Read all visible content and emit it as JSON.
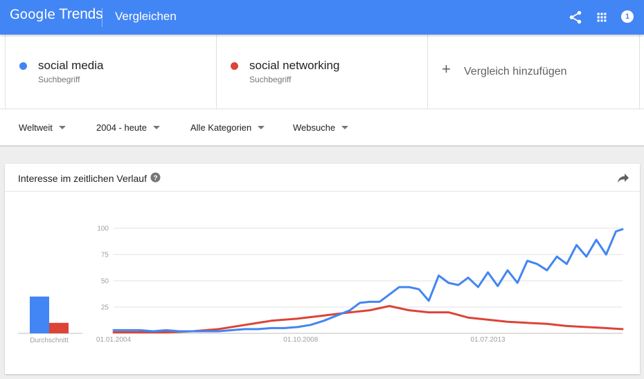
{
  "header": {
    "logo_google": "Google",
    "logo_trends": "Trends",
    "title": "Vergleichen",
    "icons": [
      "share-icon",
      "apps-icon"
    ],
    "notifications": "1"
  },
  "terms": [
    {
      "name": "social media",
      "type": "Suchbegriff",
      "color": "#4285f4"
    },
    {
      "name": "social networking",
      "type": "Suchbegriff",
      "color": "#db4437"
    }
  ],
  "add_term": {
    "label": "Vergleich hinzufügen"
  },
  "filters": {
    "region": "Weltweit",
    "time": "2004 - heute",
    "category": "Alle Kategorien",
    "search_type": "Websuche"
  },
  "card": {
    "title": "Interesse im zeitlichen Verlauf"
  },
  "chart_data": {
    "type": "line",
    "ylim": [
      0,
      100
    ],
    "y_ticks": [
      "100",
      "75",
      "50",
      "25"
    ],
    "x_tick_labels": [
      "01.01.2004",
      "01.10.2008",
      "01.07.2013"
    ],
    "x_tick_dates": [
      "2004-01",
      "2008-10",
      "2013-07"
    ],
    "x_range": [
      "2004-01",
      "2016-12"
    ],
    "average_label": "Durchschnitt",
    "averages": [
      {
        "name": "social media",
        "value": 35
      },
      {
        "name": "social networking",
        "value": 10
      }
    ],
    "series": [
      {
        "name": "social media",
        "color": "#4285f4",
        "points": [
          [
            "2004-01",
            3
          ],
          [
            "2004-05",
            3
          ],
          [
            "2004-09",
            3
          ],
          [
            "2005-01",
            2
          ],
          [
            "2005-05",
            3
          ],
          [
            "2005-09",
            2
          ],
          [
            "2006-01",
            2
          ],
          [
            "2006-05",
            2
          ],
          [
            "2006-09",
            2
          ],
          [
            "2007-01",
            3
          ],
          [
            "2007-05",
            4
          ],
          [
            "2007-09",
            4
          ],
          [
            "2008-01",
            5
          ],
          [
            "2008-05",
            5
          ],
          [
            "2008-09",
            6
          ],
          [
            "2009-01",
            8
          ],
          [
            "2009-05",
            12
          ],
          [
            "2009-09",
            17
          ],
          [
            "2010-01",
            22
          ],
          [
            "2010-04",
            29
          ],
          [
            "2010-07",
            30
          ],
          [
            "2010-10",
            30
          ],
          [
            "2011-01",
            37
          ],
          [
            "2011-04",
            44
          ],
          [
            "2011-07",
            44
          ],
          [
            "2011-10",
            42
          ],
          [
            "2012-01",
            31
          ],
          [
            "2012-04",
            55
          ],
          [
            "2012-07",
            48
          ],
          [
            "2012-10",
            46
          ],
          [
            "2013-01",
            53
          ],
          [
            "2013-04",
            44
          ],
          [
            "2013-07",
            58
          ],
          [
            "2013-10",
            45
          ],
          [
            "2014-01",
            60
          ],
          [
            "2014-04",
            48
          ],
          [
            "2014-07",
            69
          ],
          [
            "2014-10",
            66
          ],
          [
            "2015-01",
            60
          ],
          [
            "2015-04",
            73
          ],
          [
            "2015-07",
            66
          ],
          [
            "2015-10",
            84
          ],
          [
            "2016-01",
            73
          ],
          [
            "2016-04",
            89
          ],
          [
            "2016-07",
            75
          ],
          [
            "2016-10",
            97
          ],
          [
            "2016-12",
            99
          ]
        ]
      },
      {
        "name": "social networking",
        "color": "#db4437",
        "points": [
          [
            "2004-01",
            1
          ],
          [
            "2004-09",
            1
          ],
          [
            "2005-05",
            1
          ],
          [
            "2006-01",
            2
          ],
          [
            "2006-09",
            4
          ],
          [
            "2007-05",
            8
          ],
          [
            "2008-01",
            12
          ],
          [
            "2008-09",
            14
          ],
          [
            "2009-05",
            17
          ],
          [
            "2010-01",
            20
          ],
          [
            "2010-07",
            22
          ],
          [
            "2011-01",
            26
          ],
          [
            "2011-07",
            22
          ],
          [
            "2012-01",
            20
          ],
          [
            "2012-07",
            20
          ],
          [
            "2013-01",
            15
          ],
          [
            "2013-07",
            13
          ],
          [
            "2014-01",
            11
          ],
          [
            "2014-07",
            10
          ],
          [
            "2015-01",
            9
          ],
          [
            "2015-07",
            7
          ],
          [
            "2016-01",
            6
          ],
          [
            "2016-07",
            5
          ],
          [
            "2016-12",
            4
          ]
        ]
      }
    ]
  }
}
